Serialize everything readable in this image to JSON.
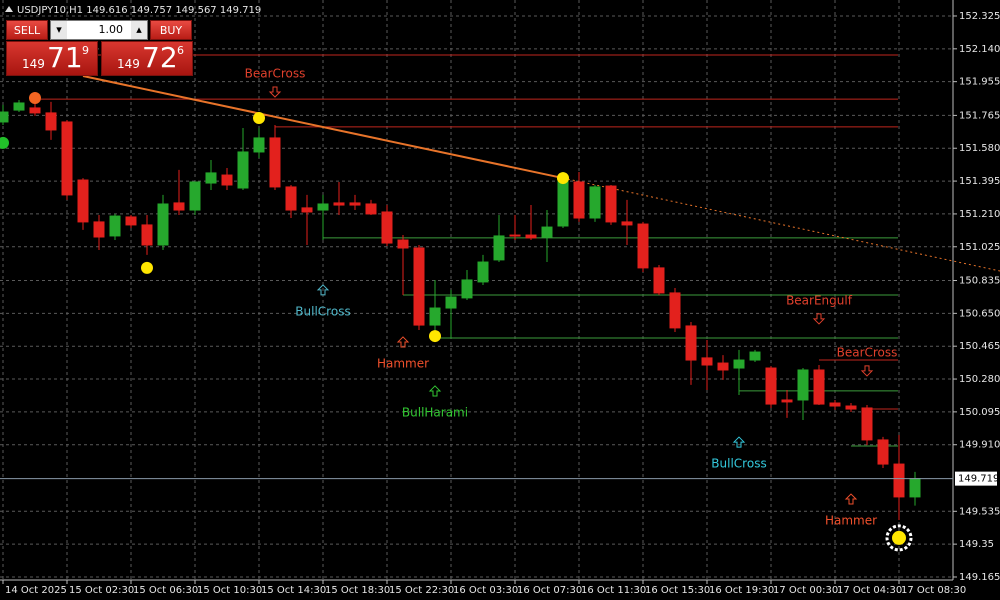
{
  "chart_data": {
    "type": "candlestick",
    "symbol": "USDJPY10,H1",
    "categories": [
      "14 Oct 2025",
      null,
      null,
      null,
      "15 Oct 02:30",
      null,
      null,
      null,
      "15 Oct 06:30",
      null,
      null,
      null,
      "15 Oct 10:30",
      null,
      null,
      null,
      "15 Oct 14:30",
      null,
      null,
      null,
      "15 Oct 18:30",
      null,
      null,
      null,
      "15 Oct 22:30",
      null,
      null,
      null,
      "16 Oct 03:30",
      null,
      null,
      null,
      "16 Oct 07:30",
      null,
      null,
      null,
      "16 Oct 11:30",
      null,
      null,
      null,
      "16 Oct 15:30",
      null,
      null,
      null,
      "16 Oct 19:30",
      null,
      null,
      null,
      "17 Oct 00:30",
      null,
      null,
      null,
      "17 Oct 04:30",
      null,
      null,
      null,
      "17 Oct 08:30",
      null
    ],
    "open": [
      151.728,
      151.795,
      151.807,
      151.779,
      151.728,
      151.401,
      151.165,
      151.086,
      151.193,
      151.148,
      151.035,
      151.272,
      151.232,
      151.384,
      151.429,
      151.356,
      151.559,
      151.638,
      151.362,
      151.244,
      151.232,
      151.272,
      151.272,
      151.266,
      151.221,
      151.063,
      151.018,
      150.584,
      150.68,
      150.737,
      150.827,
      150.951,
      151.091,
      151.091,
      151.08,
      151.142,
      151.39,
      151.187,
      151.367,
      151.165,
      151.153,
      150.906,
      150.765,
      150.579,
      150.399,
      150.37,
      150.342,
      150.387,
      150.342,
      150.162,
      150.162,
      150.331,
      150.145,
      150.128,
      150.117,
      149.937,
      149.801,
      149.616
    ],
    "high": [
      151.824,
      151.852,
      151.852,
      151.841,
      151.739,
      151.412,
      151.204,
      151.21,
      151.204,
      151.204,
      151.317,
      151.458,
      151.39,
      151.514,
      151.469,
      151.694,
      151.694,
      151.711,
      151.373,
      151.317,
      151.317,
      151.39,
      151.317,
      151.289,
      151.26,
      151.091,
      151.035,
      150.838,
      150.782,
      150.894,
      150.979,
      151.204,
      151.204,
      151.26,
      151.232,
      151.446,
      151.446,
      151.373,
      151.373,
      151.289,
      151.165,
      150.922,
      150.793,
      150.601,
      150.5,
      150.415,
      150.444,
      150.444,
      150.353,
      150.218,
      150.342,
      150.359,
      150.162,
      150.145,
      150.134,
      149.954,
      149.965,
      149.757
    ],
    "low": [
      151.711,
      151.784,
      151.762,
      151.627,
      151.289,
      151.12,
      151.007,
      151.063,
      151.131,
      150.979,
      151.007,
      151.204,
      151.204,
      151.345,
      151.345,
      151.345,
      151.525,
      151.345,
      151.187,
      151.035,
      151.063,
      151.204,
      151.232,
      151.204,
      151.029,
      150.753,
      150.556,
      150.5,
      150.511,
      150.725,
      150.81,
      150.939,
      151.063,
      151.063,
      150.939,
      151.131,
      151.165,
      151.165,
      151.148,
      151.035,
      150.883,
      150.753,
      150.545,
      150.247,
      150.218,
      150.275,
      150.19,
      150.376,
      150.117,
      150.061,
      150.049,
      150.134,
      150.106,
      150.094,
      149.908,
      149.779,
      149.486,
      149.567
    ],
    "close": [
      151.784,
      151.835,
      151.779,
      151.683,
      151.317,
      151.165,
      151.08,
      151.198,
      151.148,
      151.035,
      151.266,
      151.232,
      151.39,
      151.441,
      151.373,
      151.559,
      151.638,
      151.362,
      151.232,
      151.221,
      151.266,
      151.26,
      151.26,
      151.21,
      151.046,
      151.018,
      150.584,
      150.68,
      150.742,
      150.838,
      150.939,
      151.086,
      151.086,
      151.075,
      151.136,
      151.401,
      151.187,
      151.362,
      151.165,
      151.148,
      150.906,
      150.765,
      150.568,
      150.387,
      150.359,
      150.331,
      150.387,
      150.432,
      150.139,
      150.151,
      150.331,
      150.139,
      150.128,
      150.111,
      149.937,
      149.801,
      149.616,
      149.719
    ],
    "up_color": "#26a82d",
    "down_color": "#e3211d",
    "ylim": [
      149.148,
      152.415
    ],
    "yticks": [
      152.325,
      {
        "value": 152.14,
        "label": "152.140"
      },
      151.955,
      151.765,
      {
        "value": 151.58,
        "label": "151.580"
      },
      151.395,
      {
        "value": 151.21,
        "label": "151.210"
      },
      151.025,
      150.835,
      {
        "value": 150.65,
        "label": "150.650"
      },
      150.465,
      {
        "value": 150.28,
        "label": "150.280"
      },
      150.095,
      {
        "value": 149.91,
        "label": "149.910"
      },
      149.535,
      149.35,
      149.165
    ],
    "grid": true,
    "levels": [
      {
        "price": 152.105,
        "start": 5,
        "color": "#c0261e"
      },
      {
        "price": 151.857,
        "start": 2,
        "color": "#c0261e"
      },
      {
        "price": 151.7,
        "start": 17,
        "color": "#c0261e"
      },
      {
        "price": 151.075,
        "start": 20,
        "color": "#3c9c3c"
      },
      {
        "price": 150.753,
        "start": 25,
        "color": "#3c9c3c"
      },
      {
        "price": 150.511,
        "start": 27,
        "color": "#3c9c3c"
      },
      {
        "price": 150.387,
        "start": 51,
        "color": "#c0261e"
      },
      {
        "price": 150.213,
        "start": 46,
        "color": "#3c9c3c"
      },
      {
        "price": 150.111,
        "start": 54,
        "color": "#c0261e"
      },
      {
        "price": 149.903,
        "start": 53,
        "color": "#3c9c3c"
      }
    ],
    "trendline": {
      "from": [
        5,
        151.987
      ],
      "to": [
        35,
        151.412
      ],
      "color": "#e8742a"
    },
    "markers": [
      {
        "index": 0,
        "price": 151.61,
        "color": "#22c02a"
      },
      {
        "index": 2,
        "price": 151.863,
        "color": "#f26522"
      },
      {
        "index": 9,
        "price": 150.906,
        "color": "#ffe600"
      },
      {
        "index": 16,
        "price": 151.75,
        "color": "#ffe600"
      },
      {
        "index": 27,
        "price": 150.522,
        "color": "#ffe600"
      },
      {
        "index": 35,
        "price": 151.412,
        "color": "#ffe600"
      },
      {
        "index": 56,
        "price": 149.385,
        "color": "#ffe600"
      }
    ],
    "annotations": [
      {
        "text": "BearCross",
        "index": 17,
        "price": 151.998,
        "arrow": "down",
        "color": "#e0402c"
      },
      {
        "text": "BullCross",
        "index": 20,
        "price": 150.658,
        "arrow": "up",
        "color": "#4fb6c8"
      },
      {
        "text": "Hammer",
        "index": 25,
        "price": 150.365,
        "arrow": "up",
        "color": "#f0502c"
      },
      {
        "text": "BullHarami",
        "index": 27,
        "price": 150.089,
        "arrow": "up",
        "color": "#33c833"
      },
      {
        "text": "BearEngulf",
        "index": 51,
        "price": 150.72,
        "arrow": "down",
        "color": "#e0402c"
      },
      {
        "text": "BearCross",
        "index": 54,
        "price": 150.427,
        "arrow": "down",
        "color": "#e0402c"
      },
      {
        "text": "BullCross",
        "index": 46,
        "price": 149.801,
        "arrow": "up",
        "color": "#33c8dc"
      },
      {
        "text": "Hammer",
        "index": 53,
        "price": 149.48,
        "arrow": "up",
        "color": "#f0502c"
      }
    ]
  },
  "trade_panel": {
    "sell": "SELL",
    "buy": "BUY",
    "lot": "1.00",
    "bid": {
      "big": "149",
      "pips": "71",
      "point": "9"
    },
    "ask": {
      "big": "149",
      "pips": "72",
      "point": "6"
    }
  }
}
